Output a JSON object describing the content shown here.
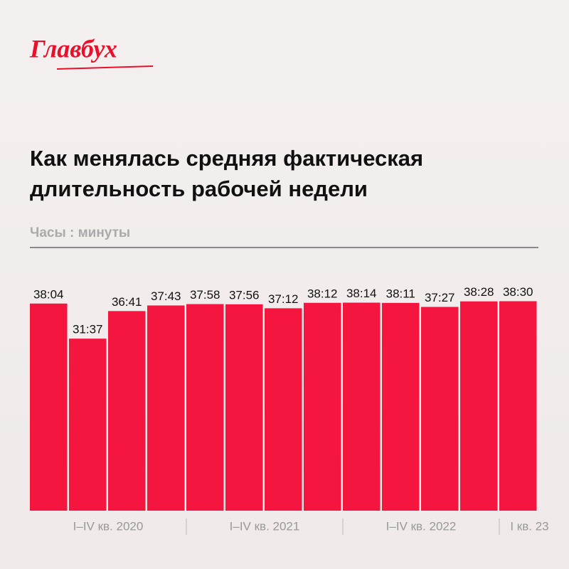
{
  "logo": "Главбух",
  "chart_data": {
    "type": "bar",
    "title": [
      "Как менялась средняя фактическая",
      "длительность рабочей недели"
    ],
    "subtitle": "Часы : минуты",
    "values": [
      38.0667,
      31.6167,
      36.6833,
      37.7167,
      37.9667,
      37.9333,
      37.2,
      38.2,
      38.2333,
      38.1833,
      37.45,
      38.4667,
      38.5
    ],
    "value_labels": [
      "38:04",
      "31:37",
      "36:41",
      "37:43",
      "37:58",
      "37:56",
      "37:12",
      "38:12",
      "38:14",
      "38:11",
      "37:27",
      "38:28",
      "38:30"
    ],
    "groups": [
      {
        "label": "I–IV кв. 2020",
        "bars": 4
      },
      {
        "label": "I–IV кв. 2021",
        "bars": 4
      },
      {
        "label": "I–IV кв. 2022",
        "bars": 4
      },
      {
        "label": "I кв. 23",
        "bars": 1
      }
    ],
    "color": "#f5163f",
    "ylim": [
      0,
      40
    ]
  }
}
